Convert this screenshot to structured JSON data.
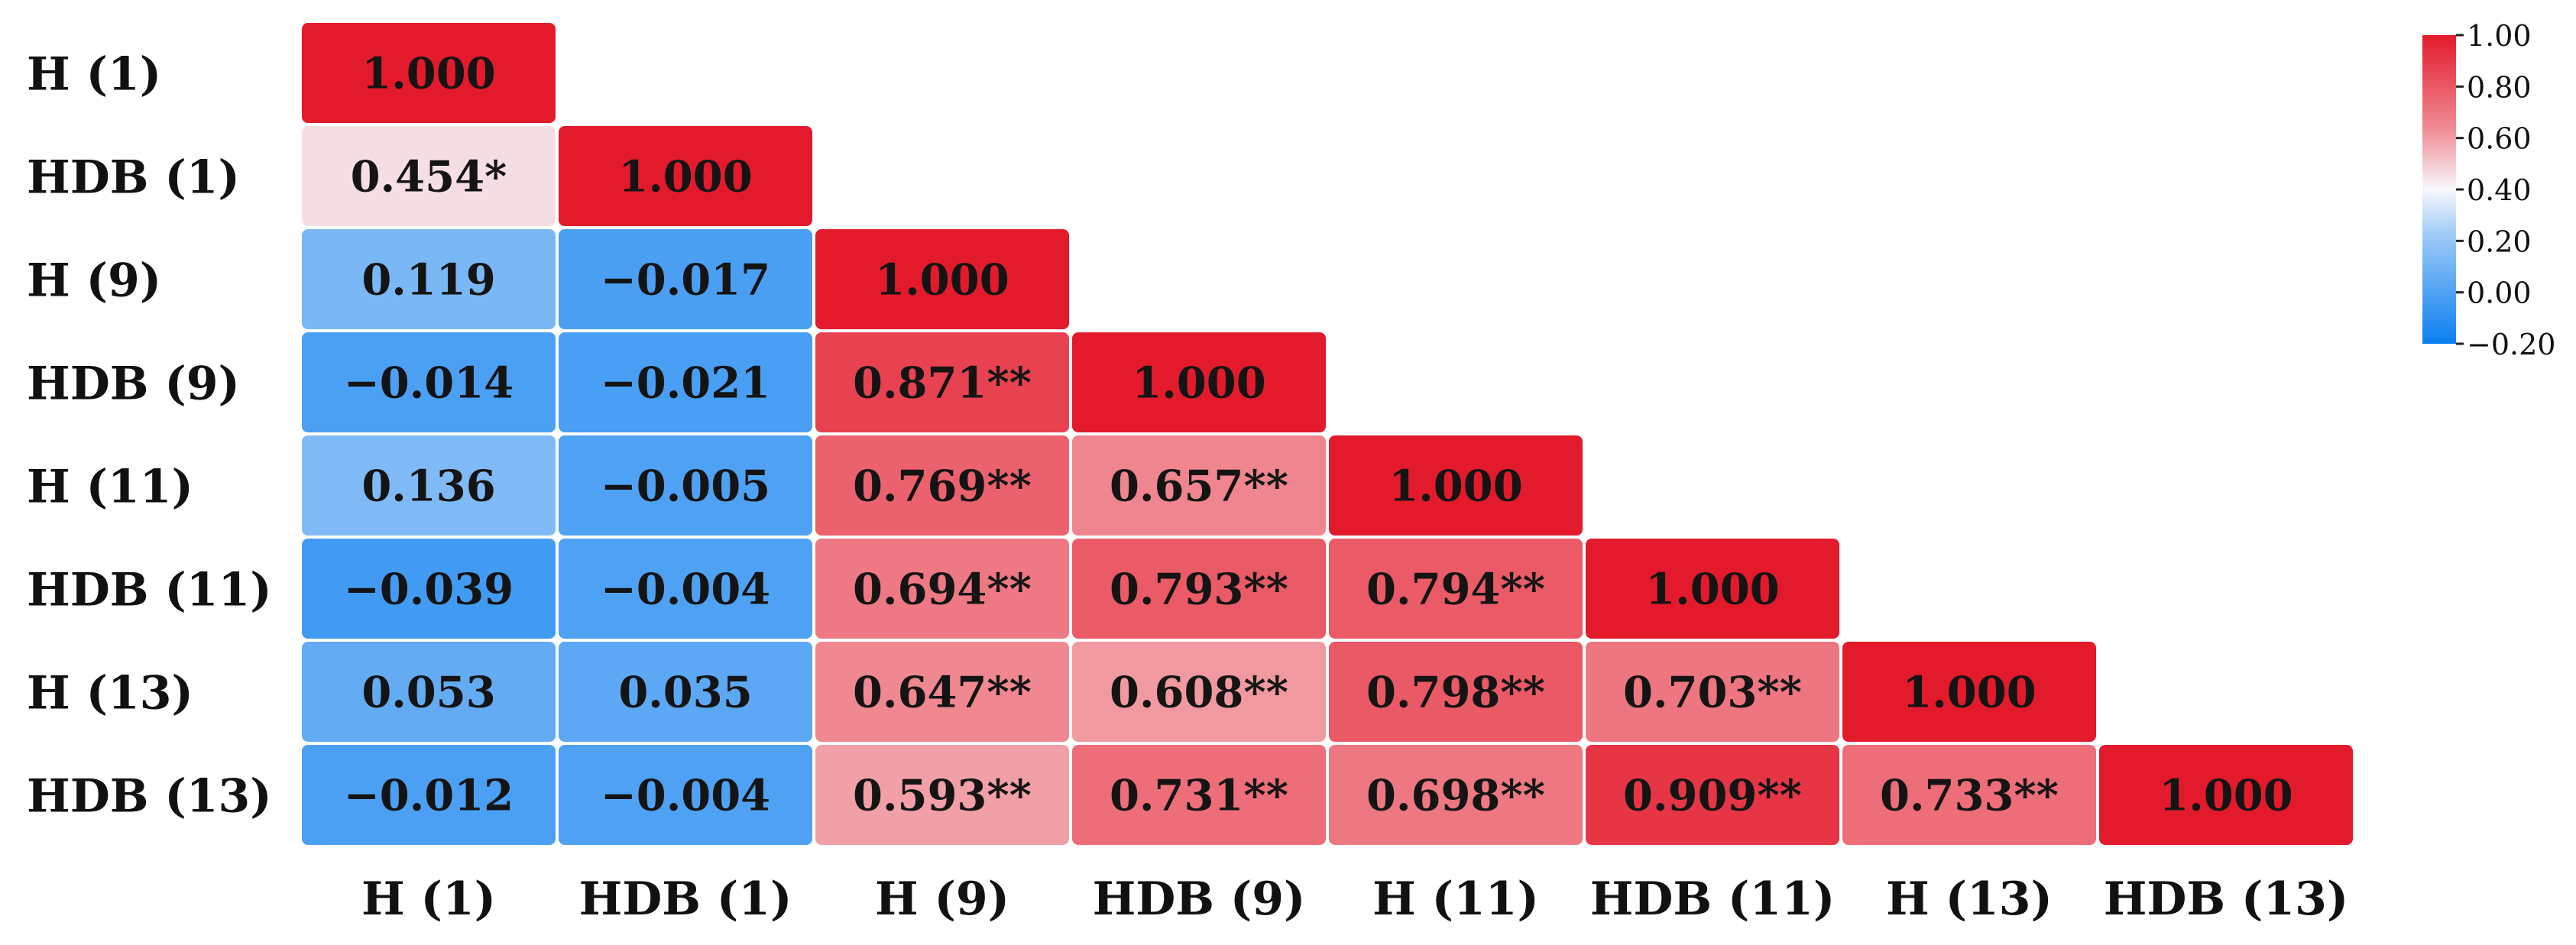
{
  "chart_data": {
    "type": "heatmap",
    "layout": "lower-triangle",
    "title": "",
    "xlabel": "",
    "ylabel": "",
    "row_labels": [
      "H (1)",
      "HDB (1)",
      "H (9)",
      "HDB (9)",
      "H (11)",
      "HDB (11)",
      "H (13)",
      "HDB (13)"
    ],
    "col_labels": [
      "H (1)",
      "HDB (1)",
      "H (9)",
      "HDB (9)",
      "H (11)",
      "HDB (11)",
      "H (13)",
      "HDB (13)"
    ],
    "values": [
      [
        1.0
      ],
      [
        0.454,
        1.0
      ],
      [
        0.119,
        -0.017,
        1.0
      ],
      [
        -0.014,
        -0.021,
        0.871,
        1.0
      ],
      [
        0.136,
        -0.005,
        0.769,
        0.657,
        1.0
      ],
      [
        -0.039,
        -0.004,
        0.694,
        0.793,
        0.794,
        1.0
      ],
      [
        0.053,
        0.035,
        0.647,
        0.608,
        0.798,
        0.703,
        1.0
      ],
      [
        -0.012,
        -0.004,
        0.593,
        0.731,
        0.698,
        0.909,
        0.733,
        1.0
      ]
    ],
    "cell_labels": [
      [
        "1.000"
      ],
      [
        "0.454*",
        "1.000"
      ],
      [
        "0.119",
        "−0.017",
        "1.000"
      ],
      [
        "−0.014",
        "−0.021",
        "0.871**",
        "1.000"
      ],
      [
        "0.136",
        "−0.005",
        "0.769**",
        "0.657**",
        "1.000"
      ],
      [
        "−0.039",
        "−0.004",
        "0.694**",
        "0.793**",
        "0.794**",
        "1.000"
      ],
      [
        "0.053",
        "0.035",
        "0.647**",
        "0.608**",
        "0.798**",
        "0.703**",
        "1.000"
      ],
      [
        "−0.012",
        "−0.004",
        "0.593**",
        "0.731**",
        "0.698**",
        "0.909**",
        "0.733**",
        "1.000"
      ]
    ],
    "colorbar": {
      "range": [
        -0.2,
        1.0
      ],
      "tick_labels": [
        "1.00",
        "0.80",
        "0.60",
        "0.40",
        "0.20",
        "0.00",
        "−0.20"
      ],
      "tick_values": [
        1.0,
        0.8,
        0.6,
        0.4,
        0.2,
        0.0,
        -0.2
      ],
      "placement": "top-right"
    },
    "colors": {
      "low": "#0a7ff0",
      "mid": "#f8f8fc",
      "high": "#e31a2c"
    }
  }
}
